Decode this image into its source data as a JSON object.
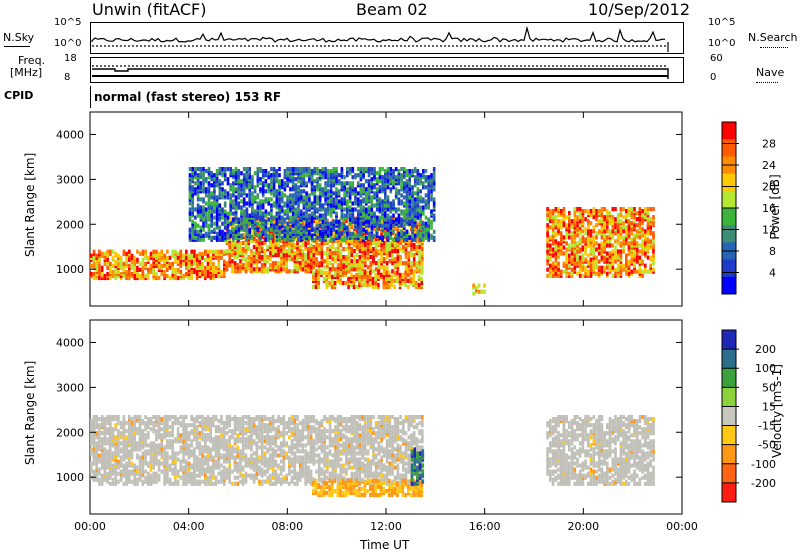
{
  "header": {
    "station": "Unwin  (fitACF)",
    "beam": "Beam 02",
    "date": "10/Sep/2012"
  },
  "strip1": {
    "left_label": "N.Sky",
    "right_label": "N.Search",
    "left_ticks": [
      "10^5",
      "10^0"
    ],
    "right_ticks": [
      "10^5",
      "10^0"
    ]
  },
  "strip2": {
    "left_label_1": "Freq.",
    "left_label_2": "[MHz]",
    "right_label": "Nave",
    "left_ticks": [
      "18",
      "8"
    ],
    "right_ticks": [
      "60",
      "0"
    ]
  },
  "cpid": {
    "label": "CPID",
    "mode": "normal (fast stereo) 153 RF"
  },
  "chart_data": [
    {
      "type": "heatmap",
      "title": "Power",
      "ylabel": "Slant Range [km]",
      "ylim": [
        180,
        4500
      ],
      "y_ticks": [
        "1000",
        "2000",
        "3000",
        "4000"
      ],
      "colorbar_label": "Power [dB]",
      "colorbar_ticks": [
        "28",
        "24",
        "20",
        "16",
        "12",
        "8",
        "4"
      ],
      "colorbar_colors": [
        "#ff0000",
        "#ff5a00",
        "#ff8c00",
        "#ffc800",
        "#b4e632",
        "#3cb43c",
        "#3c8c78",
        "#2864b4",
        "#1e3cc8",
        "#0000ff"
      ],
      "echo_bands_note": "",
      "regions": [
        {
          "x": [
            0.0,
            5.5
          ],
          "y": [
            850,
            1450
          ],
          "level": "high"
        },
        {
          "x": [
            5.5,
            13.5
          ],
          "y": [
            1000,
            2200
          ],
          "level": "high"
        },
        {
          "x": [
            9.0,
            13.5
          ],
          "y": [
            650,
            1000
          ],
          "level": "high"
        },
        {
          "x": [
            4.0,
            14.0
          ],
          "y": [
            1700,
            3300
          ],
          "level": "low"
        },
        {
          "x": [
            15.5,
            16.0
          ],
          "y": [
            500,
            700
          ],
          "level": "mid"
        },
        {
          "x": [
            18.5,
            22.8
          ],
          "y": [
            900,
            2400
          ],
          "level": "high"
        }
      ]
    },
    {
      "type": "heatmap",
      "title": "Velocity",
      "ylabel": "Slant Range [km]",
      "xlabel": "Time UT",
      "ylim": [
        180,
        4500
      ],
      "xlim": [
        0,
        24
      ],
      "x_ticks": [
        "00:00",
        "04:00",
        "08:00",
        "12:00",
        "16:00",
        "20:00",
        "00:00"
      ],
      "y_ticks": [
        "1000",
        "2000",
        "3000",
        "4000"
      ],
      "colorbar_label": "Velocity [m s-1]",
      "colorbar_ticks": [
        "200",
        "100",
        "50",
        "15",
        "-15",
        "-50",
        "-100",
        "-200"
      ],
      "colorbar_colors": [
        "#1e28b4",
        "#2d6e8c",
        "#3ca03c",
        "#8cd23c",
        "#c8c8c0",
        "#ffc814",
        "#ff9614",
        "#ff6414",
        "#ff1e14"
      ],
      "regions": [
        {
          "x": [
            0.0,
            13.5
          ],
          "y": [
            900,
            2400
          ],
          "level": "ground"
        },
        {
          "x": [
            9.0,
            13.5
          ],
          "y": [
            650,
            1000
          ],
          "level": "negative"
        },
        {
          "x": [
            13.0,
            13.5
          ],
          "y": [
            900,
            1700
          ],
          "level": "positive"
        },
        {
          "x": [
            18.5,
            22.8
          ],
          "y": [
            900,
            2400
          ],
          "level": "ground"
        }
      ]
    }
  ],
  "colors": {
    "ground_scatter": "#c0c0b8"
  }
}
